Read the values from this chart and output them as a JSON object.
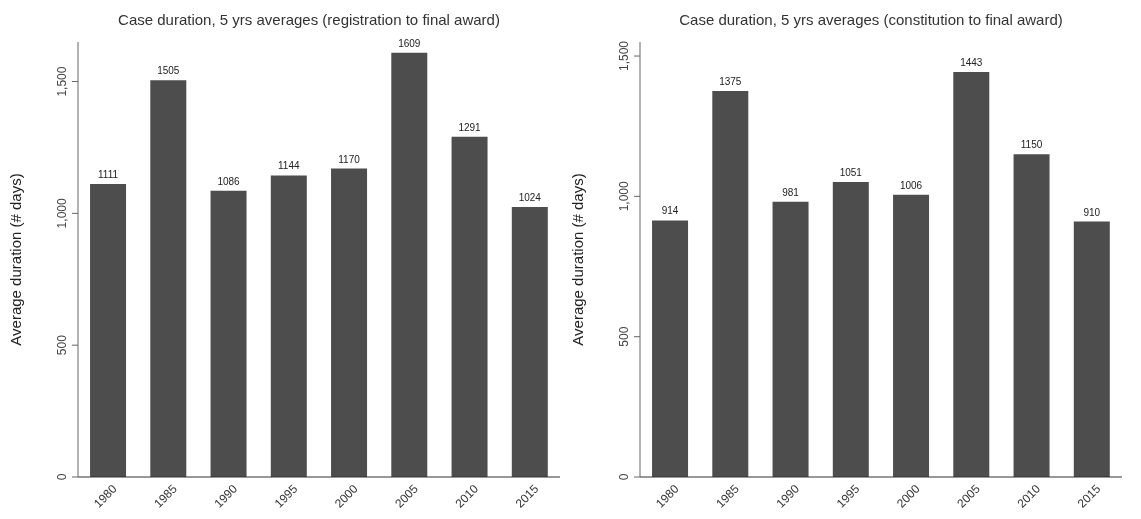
{
  "chart_data": [
    {
      "type": "bar",
      "title": "Case duration, 5 yrs averages (registration to final award)",
      "ylabel": "Average duration (# days)",
      "categories": [
        "1980",
        "1985",
        "1990",
        "1995",
        "2000",
        "2005",
        "2010",
        "2015"
      ],
      "values": [
        1111,
        1505,
        1086,
        1144,
        1170,
        1609,
        1291,
        1024
      ],
      "color": "#4d4d4d",
      "ylim": [
        0,
        1650
      ],
      "yticks": [
        0,
        {
          "value": 500,
          "label": "500"
        },
        {
          "value": 1000,
          "label": "1,000"
        },
        {
          "value": 1500,
          "label": "1,500"
        }
      ],
      "data_labels": true,
      "grid": false
    },
    {
      "type": "bar",
      "title": "Case duration, 5 yrs averages (constitution to final award)",
      "ylabel": "Average duration (# days)",
      "categories": [
        "1980",
        "1985",
        "1990",
        "1995",
        "2000",
        "2005",
        "2010",
        "2015"
      ],
      "values": [
        914,
        1375,
        981,
        1051,
        1006,
        1443,
        1150,
        910
      ],
      "color": "#4d4d4d",
      "ylim": [
        0,
        1550
      ],
      "yticks": [
        0,
        {
          "value": 500,
          "label": "500"
        },
        {
          "value": 1000,
          "label": "1,000"
        },
        {
          "value": 1500,
          "label": "1,500"
        }
      ],
      "data_labels": true,
      "grid": false
    }
  ]
}
